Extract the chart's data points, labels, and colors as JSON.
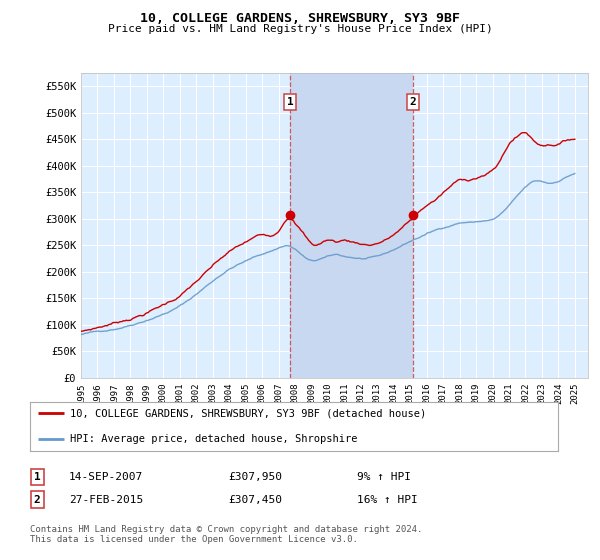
{
  "title": "10, COLLEGE GARDENS, SHREWSBURY, SY3 9BF",
  "subtitle": "Price paid vs. HM Land Registry's House Price Index (HPI)",
  "legend_line1": "10, COLLEGE GARDENS, SHREWSBURY, SY3 9BF (detached house)",
  "legend_line2": "HPI: Average price, detached house, Shropshire",
  "footer": "Contains HM Land Registry data © Crown copyright and database right 2024.\nThis data is licensed under the Open Government Licence v3.0.",
  "sale1_date": "14-SEP-2007",
  "sale1_price": "£307,950",
  "sale1_hpi": "9% ↑ HPI",
  "sale2_date": "27-FEB-2015",
  "sale2_price": "£307,450",
  "sale2_hpi": "16% ↑ HPI",
  "sale1_x": 2007.71,
  "sale2_x": 2015.15,
  "sale1_y": 307950,
  "sale2_y": 307450,
  "red_color": "#cc0000",
  "blue_color": "#6699cc",
  "vline_color": "#cc4444",
  "plot_bg": "#ddeeff",
  "highlight_bg": "#c8d8f0",
  "grid_color": "#ffffff",
  "ylim": [
    0,
    575000
  ],
  "xlim_start": 1995.0,
  "xlim_end": 2025.8,
  "ytick_values": [
    0,
    50000,
    100000,
    150000,
    200000,
    250000,
    300000,
    350000,
    400000,
    450000,
    500000,
    550000
  ],
  "ytick_labels": [
    "£0",
    "£50K",
    "£100K",
    "£150K",
    "£200K",
    "£250K",
    "£300K",
    "£350K",
    "£400K",
    "£450K",
    "£500K",
    "£550K"
  ],
  "xtick_years": [
    1995,
    1996,
    1997,
    1998,
    1999,
    2000,
    2001,
    2002,
    2003,
    2004,
    2005,
    2006,
    2007,
    2008,
    2009,
    2010,
    2011,
    2012,
    2013,
    2014,
    2015,
    2016,
    2017,
    2018,
    2019,
    2020,
    2021,
    2022,
    2023,
    2024,
    2025
  ]
}
